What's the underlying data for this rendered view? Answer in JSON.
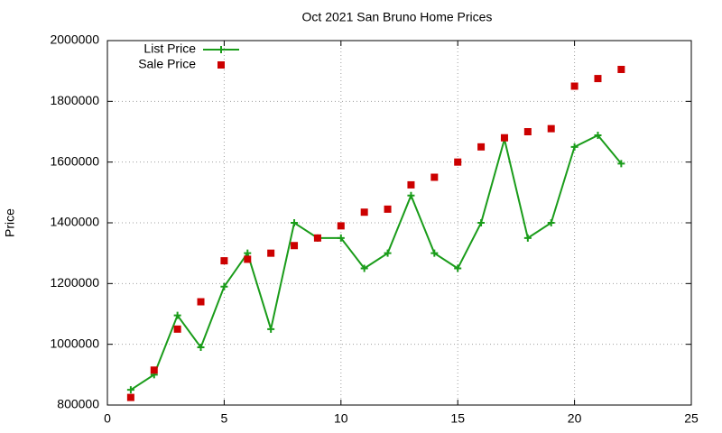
{
  "chart_data": {
    "type": "line",
    "title": "Oct 2021 San Bruno Home Prices",
    "y_label": "Price",
    "x": [
      1,
      2,
      3,
      4,
      5,
      6,
      7,
      8,
      9,
      10,
      11,
      12,
      13,
      14,
      15,
      16,
      17,
      18,
      19,
      20,
      21,
      22
    ],
    "series": [
      {
        "name": "List Price",
        "color": "#1a9c1a",
        "mode": "lines+markers",
        "marker": "plus",
        "values": [
          850000,
          900000,
          1095000,
          990000,
          1190000,
          1300000,
          1050000,
          1400000,
          1350000,
          1350000,
          1250000,
          1300000,
          1490000,
          1300000,
          1250000,
          1400000,
          1675000,
          1350000,
          1400000,
          1650000,
          1688000,
          1595000
        ]
      },
      {
        "name": "Sale Price",
        "color": "#cc0000",
        "mode": "markers",
        "marker": "square",
        "values": [
          825000,
          915000,
          1050000,
          1140000,
          1275000,
          1280000,
          1300000,
          1325000,
          1350000,
          1390000,
          1435000,
          1445000,
          1525000,
          1550000,
          1600000,
          1650000,
          1680000,
          1700000,
          1710000,
          1850000,
          1875000,
          1905000
        ]
      }
    ],
    "xlim": [
      0,
      25
    ],
    "xticks": [
      0,
      5,
      10,
      15,
      20,
      25
    ],
    "ylim": [
      800000,
      2000000
    ],
    "yticks": [
      800000,
      1000000,
      1200000,
      1400000,
      1600000,
      1800000,
      2000000
    ],
    "grid": true,
    "legend": "top-left"
  }
}
